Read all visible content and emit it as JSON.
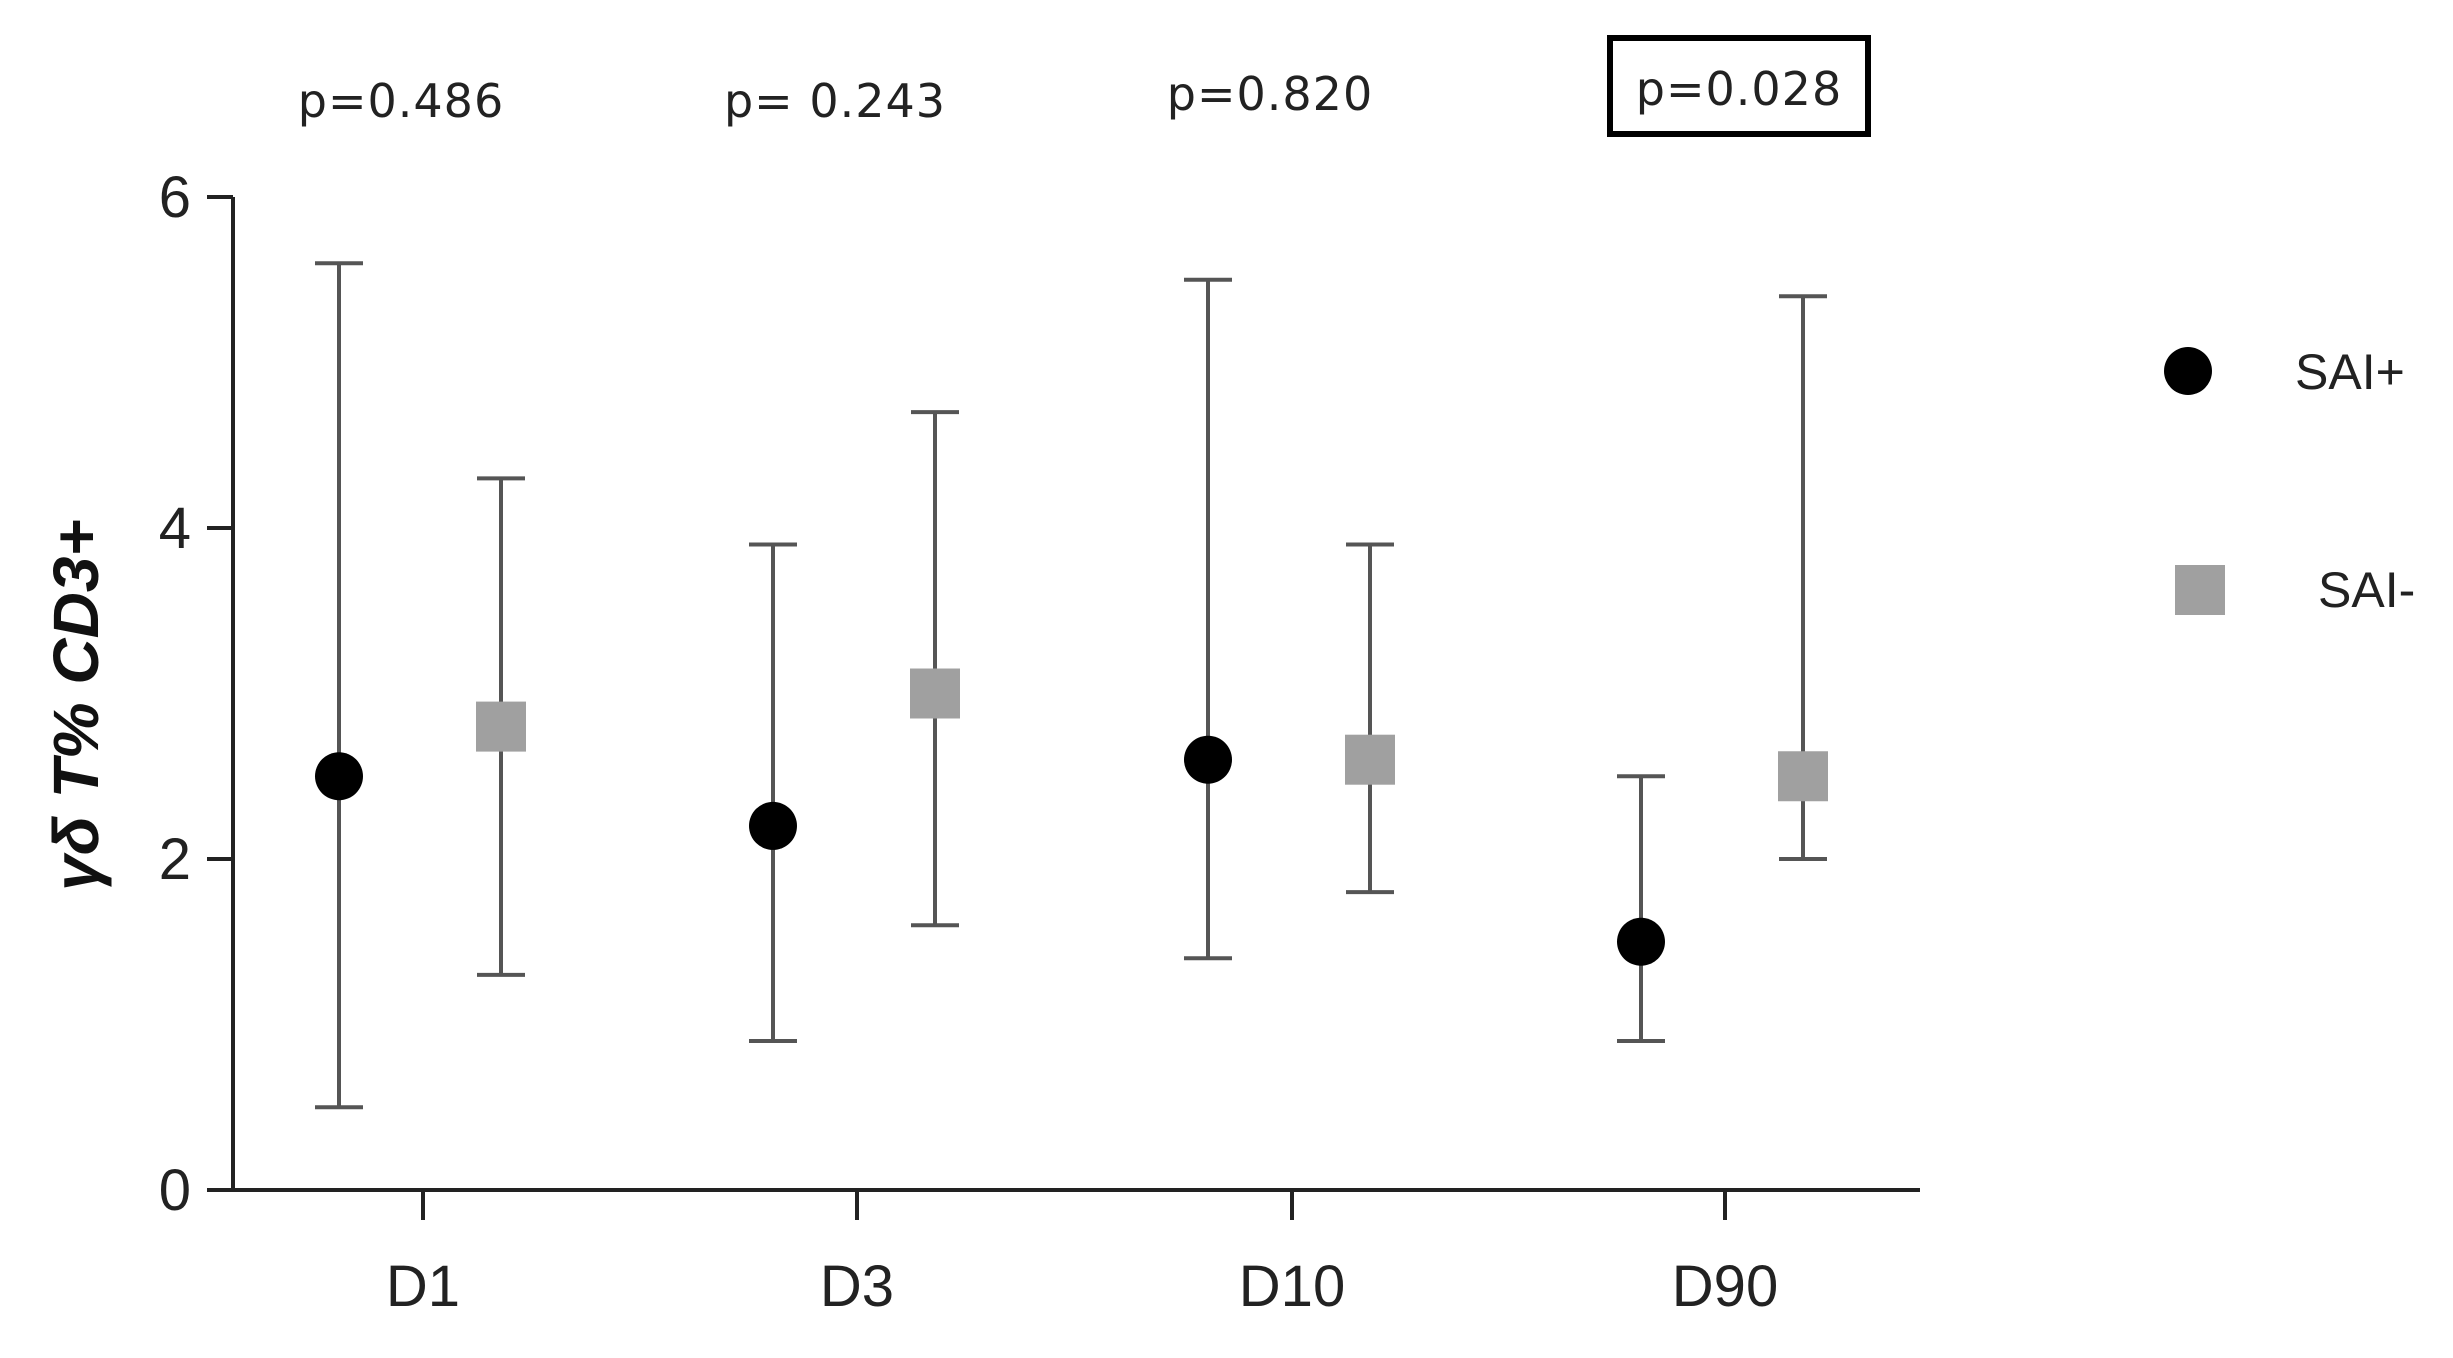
{
  "chart_data": {
    "type": "scatter",
    "ylabel": "γδ T% CD3+",
    "xlabel": "",
    "ylim": [
      0,
      6
    ],
    "yticks": [
      0,
      2,
      4,
      6
    ],
    "categories": [
      "D1",
      "D3",
      "D10",
      "D90"
    ],
    "series": [
      {
        "name": "SAI+",
        "marker": "circle",
        "color": "#000000",
        "values": [
          2.5,
          2.2,
          2.6,
          1.5
        ],
        "error_low": [
          0.5,
          0.9,
          1.4,
          0.9
        ],
        "error_high": [
          5.6,
          3.9,
          5.5,
          2.5
        ]
      },
      {
        "name": "SAI-",
        "marker": "square",
        "color": "#a0a0a0",
        "values": [
          2.8,
          3.0,
          2.6,
          2.5
        ],
        "error_low": [
          1.3,
          1.6,
          1.8,
          2.0
        ],
        "error_high": [
          4.3,
          4.7,
          3.9,
          5.4
        ]
      }
    ],
    "annotations": [
      {
        "category": "D1",
        "text": "p=0.486",
        "boxed": false
      },
      {
        "category": "D3",
        "text": "p= 0.243",
        "boxed": false
      },
      {
        "category": "D10",
        "text": "p=0.820",
        "boxed": false
      },
      {
        "category": "D90",
        "text": "p=0.028",
        "boxed": true
      }
    ],
    "legend": "right",
    "grid": false
  },
  "colors": {
    "axis": "#222222",
    "errorbar": "#555555",
    "sai_pos": "#000000",
    "sai_neg": "#a0a0a0"
  }
}
